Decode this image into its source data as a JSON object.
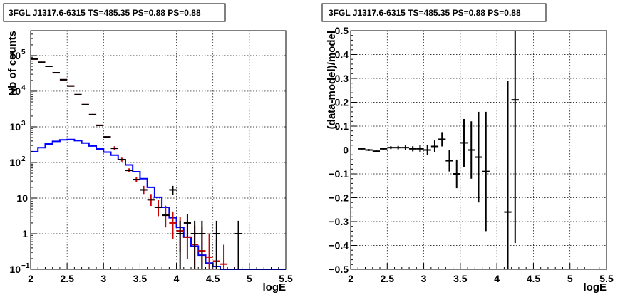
{
  "chart_data": [
    {
      "type": "line",
      "title": "3FGL J1317.6-6315 TS=485.35 PS=0.88 PS=0.88",
      "xlabel": "logE",
      "ylabel": "Nb of counts",
      "yscale": "log",
      "xlim": [
        2,
        5.5
      ],
      "ylim": [
        0.1,
        500000
      ],
      "x_ticks": [
        "2",
        "2.5",
        "3",
        "3.5",
        "4",
        "4.5",
        "5",
        "5.5"
      ],
      "y_ticks": [
        {
          "value": 0.1,
          "label": "10",
          "sup": "−1"
        },
        {
          "value": 1,
          "label": "1",
          "sup": ""
        },
        {
          "value": 10,
          "label": "10",
          "sup": ""
        },
        {
          "value": 100,
          "label": "10",
          "sup": "2"
        },
        {
          "value": 1000,
          "label": "10",
          "sup": "3"
        },
        {
          "value": 10000,
          "label": "10",
          "sup": "4"
        },
        {
          "value": 100000,
          "label": "10",
          "sup": "5"
        }
      ],
      "grid": true,
      "colors": {
        "model_step": "#0000ff",
        "predicted": "#cc0000",
        "data": "#000000"
      },
      "series": [
        {
          "kind": "step",
          "color": "#0000ff",
          "bin_edges": [
            2.0,
            2.1,
            2.2,
            2.3,
            2.4,
            2.5,
            2.6,
            2.7,
            2.8,
            2.9,
            3.0,
            3.1,
            3.2,
            3.3,
            3.4,
            3.5,
            3.6,
            3.7,
            3.8,
            3.9,
            4.0,
            4.1,
            4.2,
            4.3,
            4.4,
            4.5,
            4.6,
            4.7,
            4.8,
            4.9,
            5.0,
            5.1,
            5.2,
            5.3,
            5.4,
            5.5
          ],
          "values": [
            200,
            260,
            330,
            390,
            430,
            440,
            410,
            350,
            290,
            240,
            195,
            160,
            120,
            85,
            55,
            35,
            20,
            10.5,
            5.5,
            2.8,
            1.5,
            0.8,
            0.45,
            0.25,
            0.15,
            0.12,
            0.1,
            0.1,
            0.1,
            0.1,
            0.1,
            0.1,
            0.1,
            0.1,
            0.1
          ]
        },
        {
          "kind": "points",
          "color": "#cc0000",
          "x": [
            2.05,
            2.15,
            2.25,
            2.35,
            2.45,
            2.55,
            2.65,
            2.75,
            2.85,
            2.95,
            3.05,
            3.15,
            3.25,
            3.35,
            3.45,
            3.55,
            3.65,
            3.75,
            3.85,
            3.95,
            4.05,
            4.15,
            4.25,
            4.35,
            4.45,
            4.55,
            4.65
          ],
          "y": [
            80000,
            65000,
            50000,
            33000,
            21000,
            14000,
            8000,
            4200,
            2200,
            1100,
            520,
            250,
            120,
            60,
            33,
            17,
            9,
            5.5,
            3.3,
            2.0,
            1.2,
            0.8,
            0.5,
            0.33,
            0.22,
            0.17,
            0.14
          ],
          "yerr_lo": [
            0,
            0,
            0,
            0,
            0,
            0,
            0,
            0,
            0,
            0,
            0,
            30,
            14,
            7,
            5.5,
            4,
            3,
            2.4,
            1.8,
            1.3,
            0.9,
            0.6,
            0.4,
            0.25,
            0.14,
            0.09,
            0.06
          ],
          "yerr_hi": [
            0,
            0,
            0,
            0,
            0,
            0,
            0,
            0,
            0,
            0,
            0,
            35,
            16,
            8,
            6.5,
            5,
            4,
            3.5,
            2.8,
            2.2,
            1.8,
            1.5,
            1.2,
            1.2,
            0.8,
            0.5,
            0.35
          ]
        },
        {
          "kind": "points",
          "color": "#000000",
          "x": [
            2.05,
            2.15,
            2.25,
            2.35,
            2.45,
            2.55,
            2.65,
            2.75,
            2.85,
            2.95,
            3.05,
            3.15,
            3.25,
            3.35,
            3.45,
            3.55,
            3.65,
            3.75,
            3.85,
            3.95,
            4.05,
            4.15,
            4.25,
            4.35,
            4.55,
            4.85
          ],
          "y": [
            80000,
            65000,
            50000,
            33000,
            21000,
            14000,
            8000,
            4200,
            2200,
            1100,
            520,
            250,
            120,
            60,
            33,
            17,
            9,
            5.5,
            3.3,
            17,
            1,
            2,
            1,
            1,
            1,
            1
          ],
          "yerr_lo": [
            0,
            0,
            0,
            0,
            0,
            0,
            0,
            0,
            0,
            0,
            0,
            0,
            0,
            0,
            0,
            0,
            0,
            0,
            0,
            5,
            1,
            1.2,
            1,
            1,
            1,
            1
          ],
          "yerr_hi": [
            0,
            0,
            0,
            0,
            0,
            0,
            0,
            0,
            0,
            0,
            0,
            0,
            0,
            0,
            0,
            0,
            0,
            0,
            0,
            5,
            1.3,
            1.5,
            1.3,
            1.3,
            1.3,
            1.3
          ]
        }
      ]
    },
    {
      "type": "scatter",
      "title": "3FGL J1317.6-6315 TS=485.35 PS=0.88 PS=0.88",
      "xlabel": "logE",
      "ylabel": "(data-model)/model",
      "xlim": [
        2,
        5.5
      ],
      "ylim": [
        -0.5,
        0.5
      ],
      "x_ticks": [
        "2",
        "2.5",
        "3",
        "3.5",
        "4",
        "4.5",
        "5",
        "5.5"
      ],
      "y_ticks": [
        "−0.5",
        "−0.4",
        "−0.3",
        "−0.2",
        "−0.1",
        "0",
        "0.1",
        "0.2",
        "0.3",
        "0.4",
        "0.5"
      ],
      "grid": true,
      "series": [
        {
          "kind": "points",
          "color": "#000000",
          "x": [
            2.15,
            2.25,
            2.35,
            2.45,
            2.55,
            2.65,
            2.75,
            2.85,
            2.95,
            3.05,
            3.15,
            3.25,
            3.35,
            3.45,
            3.55,
            3.65,
            3.75,
            3.85,
            4.15,
            4.25
          ],
          "y": [
            0.005,
            0.0,
            -0.005,
            0.005,
            0.01,
            0.01,
            0.01,
            0.005,
            0.005,
            0.0,
            0.015,
            0.045,
            -0.045,
            -0.1,
            0.03,
            0.0,
            -0.03,
            -0.09,
            -0.26,
            0.21
          ],
          "yerr": [
            0.003,
            0.004,
            0.004,
            0.005,
            0.006,
            0.007,
            0.009,
            0.011,
            0.015,
            0.02,
            0.025,
            0.03,
            0.045,
            0.06,
            0.1,
            0.12,
            0.19,
            0.25,
            0.55,
            0.6
          ]
        }
      ]
    }
  ]
}
